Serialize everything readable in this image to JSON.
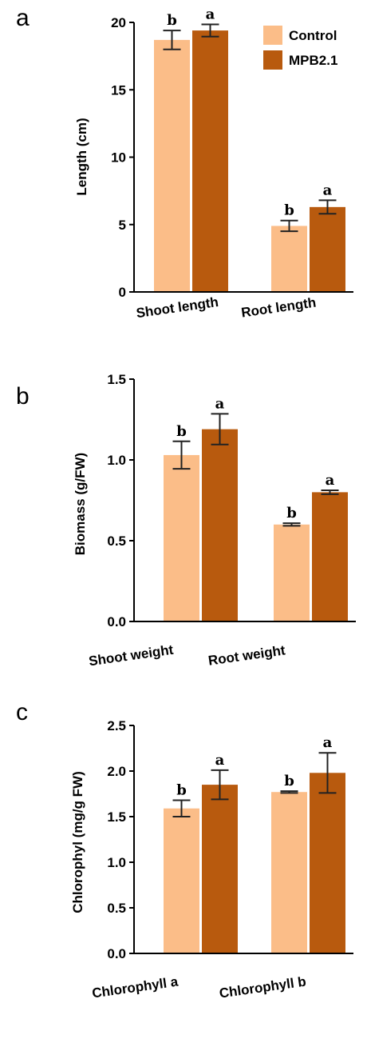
{
  "legend": {
    "entries": [
      "Control",
      "MPB2.1"
    ]
  },
  "colors": {
    "control": "#fbbd88",
    "mpb": "#b85a0e"
  },
  "chart_data": [
    {
      "type": "bar",
      "panel": "a",
      "ylabel": "Length (cm)",
      "ylim": [
        0,
        20
      ],
      "yticks": [
        0,
        5,
        10,
        15,
        20
      ],
      "yticklabels": [
        "0",
        "5",
        "10",
        "15",
        "20"
      ],
      "categories": [
        "Shoot length",
        "Root length"
      ],
      "series": [
        {
          "name": "Control",
          "values": [
            18.7,
            4.9
          ],
          "errors": [
            0.7,
            0.4
          ],
          "labels": [
            "b",
            "b"
          ]
        },
        {
          "name": "MPB2.1",
          "values": [
            19.4,
            6.3
          ],
          "errors": [
            0.45,
            0.5
          ],
          "labels": [
            "a",
            "a"
          ]
        }
      ],
      "legend": "top-right"
    },
    {
      "type": "bar",
      "panel": "b",
      "ylabel": "Biomass (g/FW)",
      "ylim": [
        0,
        1.5
      ],
      "yticks": [
        0,
        0.5,
        1.0,
        1.5
      ],
      "yticklabels": [
        "0.0",
        "0.5",
        "1.0",
        "1.5"
      ],
      "categories": [
        "Shoot weight",
        "Root weight"
      ],
      "series": [
        {
          "name": "Control",
          "values": [
            1.03,
            0.6
          ],
          "errors": [
            0.085,
            0.008
          ],
          "labels": [
            "b",
            "b"
          ]
        },
        {
          "name": "MPB2.1",
          "values": [
            1.19,
            0.8
          ],
          "errors": [
            0.095,
            0.012
          ],
          "labels": [
            "a",
            "a"
          ]
        }
      ]
    },
    {
      "type": "bar",
      "panel": "c",
      "ylabel": "Chlorophyl (mg/g FW)",
      "ylim": [
        0,
        2.5
      ],
      "yticks": [
        0,
        0.5,
        1.0,
        1.5,
        2.0,
        2.5
      ],
      "yticklabels": [
        "0.0",
        "0.5",
        "1.0",
        "1.5",
        "2.0",
        "2.5"
      ],
      "categories": [
        "Chlorophyll a",
        "Chlorophyll b"
      ],
      "series": [
        {
          "name": "Control",
          "values": [
            1.59,
            1.77
          ],
          "errors": [
            0.09,
            0.01
          ],
          "labels": [
            "b",
            "b"
          ]
        },
        {
          "name": "MPB2.1",
          "values": [
            1.85,
            1.98
          ],
          "errors": [
            0.16,
            0.22
          ],
          "labels": [
            "a",
            "a"
          ]
        }
      ]
    }
  ]
}
